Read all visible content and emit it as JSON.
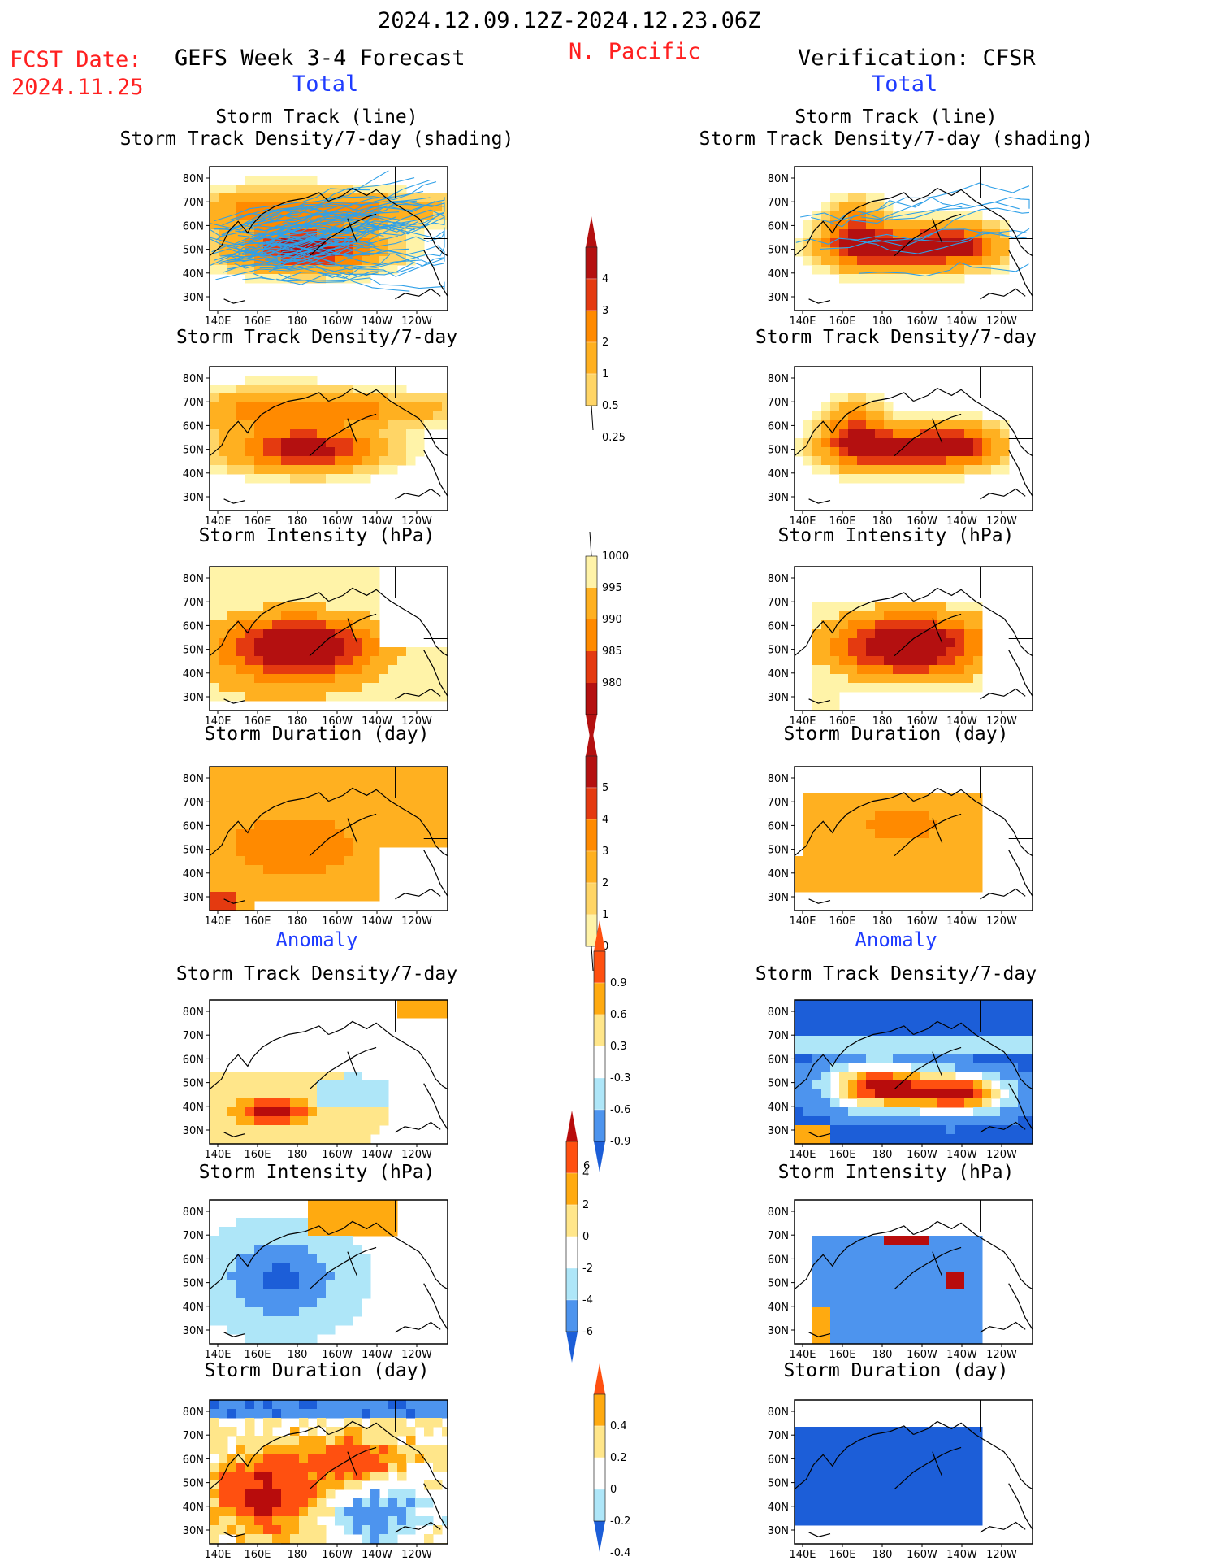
{
  "header": {
    "date_range": "2024.12.09.12Z-2024.12.23.06Z",
    "region": "N. Pacific",
    "fcst_label": "FCST Date:",
    "fcst_date": "2024.11.25",
    "left_title": "GEFS Week 3-4 Forecast",
    "right_title": "Verification: CFSR",
    "left_total": "Total",
    "right_total": "Total",
    "left_anomaly": "Anomaly",
    "right_anomaly": "Anomaly"
  },
  "panel_titles": {
    "track_line": "Storm Track (line)",
    "track_shading": "Storm Track Density/7-day (shading)",
    "density": "Storm Track Density/7-day",
    "intensity": "Storm Intensity (hPa)",
    "duration": "Storm Duration (day)"
  },
  "axes": {
    "lat_labels": [
      "80N",
      "70N",
      "60N",
      "50N",
      "40N",
      "30N"
    ],
    "lon_labels": [
      "140E",
      "160E",
      "180",
      "160W",
      "140W",
      "120W"
    ]
  },
  "colorbars": {
    "density_total": [
      "0.25",
      "0.5",
      "1",
      "2",
      "3",
      "4"
    ],
    "intensity_total": [
      "1000",
      "995",
      "990",
      "985",
      "980"
    ],
    "duration_total": [
      "0",
      "1",
      "2",
      "3",
      "4",
      "5"
    ],
    "density_anom": [
      "0.9",
      "0.6",
      "0.3",
      "-0.3",
      "-0.6",
      "-0.9"
    ],
    "intensity_anom": [
      "6",
      "4",
      "2",
      "0",
      "-2",
      "-4",
      "-6"
    ],
    "duration_anom": [
      "0.4",
      "0.2",
      "0",
      "-0.2",
      "-0.4"
    ]
  },
  "colors": {
    "seq_light": "#fff3a8",
    "seq_yellow": "#ffd566",
    "seq_lightorange": "#ffb020",
    "seq_orange": "#ff8a00",
    "seq_red": "#e43a10",
    "seq_darkred": "#b41010",
    "div_neg3": "#1c5ed8",
    "div_neg2": "#4d94ee",
    "div_neg1": "#aee6f8",
    "div_pos1": "#ffe68a",
    "div_pos2": "#ffaa10",
    "div_pos3": "#ff5010",
    "div_pos4": "#b80c0c",
    "track_line": "#2fa0e8"
  },
  "chart_data": [
    {
      "type": "heatmap",
      "panel": "GEFS Storm Track (line) / Density shading",
      "x_range": [
        "140E",
        "120W"
      ],
      "y_range": [
        "30N",
        "80N"
      ],
      "levels": [
        0.25,
        0.5,
        1,
        2,
        3,
        4
      ]
    },
    {
      "type": "heatmap",
      "panel": "CFSR Storm Track (line) / Density shading",
      "x_range": [
        "140E",
        "120W"
      ],
      "y_range": [
        "30N",
        "80N"
      ],
      "levels": [
        0.25,
        0.5,
        1,
        2,
        3,
        4
      ]
    },
    {
      "type": "heatmap",
      "panel": "GEFS Storm Track Density/7-day",
      "levels": [
        0.25,
        0.5,
        1,
        2,
        3,
        4
      ]
    },
    {
      "type": "heatmap",
      "panel": "CFSR Storm Track Density/7-day",
      "levels": [
        0.25,
        0.5,
        1,
        2,
        3,
        4
      ]
    },
    {
      "type": "heatmap",
      "panel": "GEFS Storm Intensity (hPa)",
      "levels": [
        980,
        985,
        990,
        995,
        1000
      ]
    },
    {
      "type": "heatmap",
      "panel": "CFSR Storm Intensity (hPa)",
      "levels": [
        980,
        985,
        990,
        995,
        1000
      ]
    },
    {
      "type": "heatmap",
      "panel": "GEFS Storm Duration (day)",
      "levels": [
        0,
        1,
        2,
        3,
        4,
        5
      ]
    },
    {
      "type": "heatmap",
      "panel": "CFSR Storm Duration (day)",
      "levels": [
        0,
        1,
        2,
        3,
        4,
        5
      ]
    },
    {
      "type": "heatmap",
      "panel": "GEFS Anomaly Storm Track Density/7-day",
      "levels": [
        -0.9,
        -0.6,
        -0.3,
        0.3,
        0.6,
        0.9
      ]
    },
    {
      "type": "heatmap",
      "panel": "CFSR Anomaly Storm Track Density/7-day",
      "levels": [
        -0.9,
        -0.6,
        -0.3,
        0.3,
        0.6,
        0.9
      ]
    },
    {
      "type": "heatmap",
      "panel": "GEFS Anomaly Storm Intensity (hPa)",
      "levels": [
        -6,
        -4,
        -2,
        0,
        2,
        4,
        6
      ]
    },
    {
      "type": "heatmap",
      "panel": "CFSR Anomaly Storm Intensity (hPa)",
      "levels": [
        -6,
        -4,
        -2,
        0,
        2,
        4,
        6
      ]
    },
    {
      "type": "heatmap",
      "panel": "GEFS Anomaly Storm Duration (day)",
      "levels": [
        -0.4,
        -0.2,
        0,
        0.2,
        0.4
      ]
    },
    {
      "type": "heatmap",
      "panel": "CFSR Anomaly Storm Duration (day)",
      "levels": [
        -0.4,
        -0.2,
        0,
        0.2,
        0.4
      ]
    }
  ]
}
